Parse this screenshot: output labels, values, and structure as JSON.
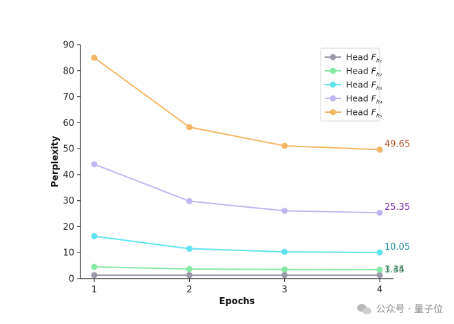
{
  "chart_data": {
    "type": "line",
    "title": "",
    "xlabel": "Epochs",
    "ylabel": "Perplexity",
    "x": [
      1,
      2,
      3,
      4
    ],
    "xticks": [
      "1",
      "2",
      "3",
      "4"
    ],
    "ylim": [
      0,
      90
    ],
    "yticks": [
      "0",
      "10",
      "20",
      "30",
      "40",
      "50",
      "60",
      "70",
      "80",
      "90"
    ],
    "grid": false,
    "legend_position": "top-right",
    "series": [
      {
        "name": "Head",
        "subscript": "h₁",
        "color": "#9a9aaa",
        "values": [
          1.34,
          1.34,
          1.34,
          1.34
        ],
        "end_label": "1.34",
        "label_color": "#555555"
      },
      {
        "name": "Head",
        "subscript": "h₂",
        "color": "#86e8a6",
        "values": [
          4.5,
          3.7,
          3.5,
          3.45
        ],
        "end_label": "3.45",
        "label_color": "#2e9d6a"
      },
      {
        "name": "Head",
        "subscript": "h₃",
        "color": "#5fe3ee",
        "values": [
          16.3,
          11.5,
          10.3,
          10.05
        ],
        "end_label": "10.05",
        "label_color": "#1f8a9a"
      },
      {
        "name": "Head",
        "subscript": "h₄",
        "color": "#c2b6f2",
        "values": [
          44.0,
          29.8,
          26.1,
          25.35
        ],
        "end_label": "25.35",
        "label_color": "#7b2fb0"
      },
      {
        "name": "Head",
        "subscript": "h₅",
        "color": "#f4b664",
        "values": [
          85.0,
          58.3,
          51.1,
          49.65
        ],
        "end_label": "49.65",
        "label_color": "#b4542a"
      }
    ]
  },
  "watermark": {
    "text": "公众号 · 量子位",
    "icon": "wechat-icon"
  }
}
